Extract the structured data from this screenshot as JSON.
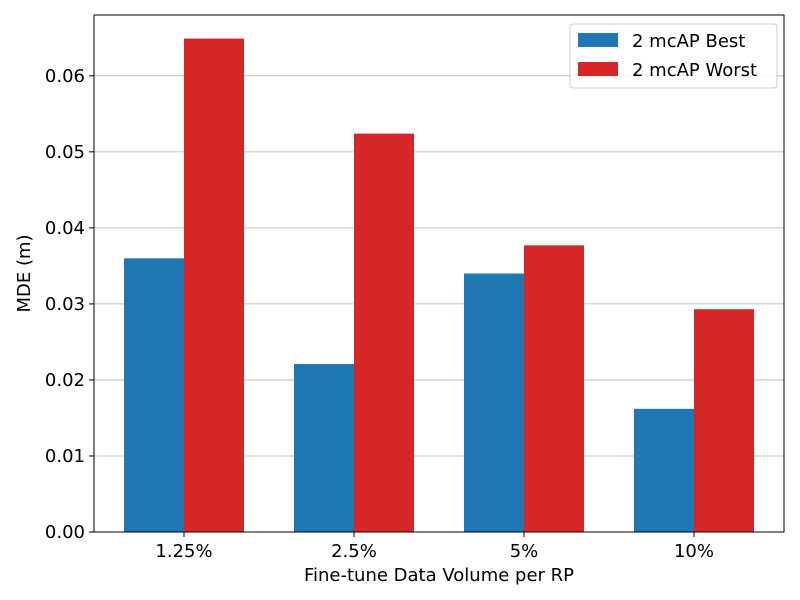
{
  "chart_data": {
    "type": "bar",
    "title": "",
    "xlabel": "Fine-tune Data Volume per RP",
    "ylabel": "MDE (m)",
    "categories": [
      "1.25%",
      "2.5%",
      "5%",
      "10%"
    ],
    "series": [
      {
        "name": "2 mcAP Best",
        "color": "#1f77b4",
        "values": [
          0.036,
          0.0221,
          0.034,
          0.0162
        ]
      },
      {
        "name": "2 mcAP Worst",
        "color": "#d62728",
        "values": [
          0.0649,
          0.0524,
          0.0377,
          0.0293
        ]
      }
    ],
    "ylim": [
      0,
      0.068
    ],
    "yticks": [
      "0.00",
      "0.01",
      "0.02",
      "0.03",
      "0.04",
      "0.05",
      "0.06"
    ],
    "grid": {
      "y": true,
      "x": false
    },
    "legend": "top-right"
  }
}
